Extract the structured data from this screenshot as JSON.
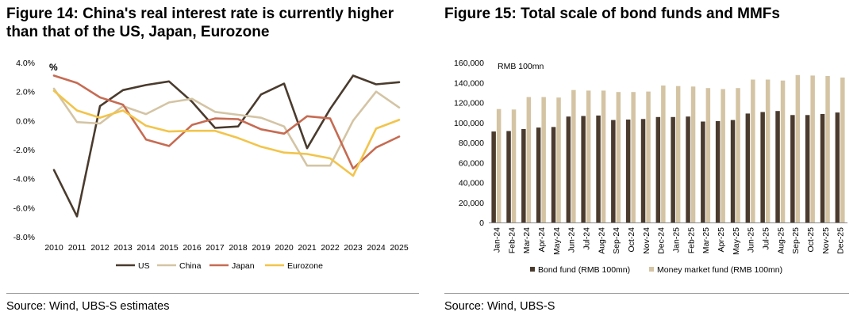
{
  "left": {
    "title": "Figure 14: China's real interest rate is currently higher than that of the US, Japan, Eurozone",
    "source": "Source: Wind, UBS-S estimates",
    "chart_data": {
      "type": "line",
      "unit_label": "%",
      "categories": [
        "2010",
        "2011",
        "2012",
        "2013",
        "2014",
        "2015",
        "2016",
        "2017",
        "2018",
        "2019",
        "2020",
        "2021",
        "2022",
        "2023",
        "2024",
        "2025"
      ],
      "ylim": [
        -8,
        4
      ],
      "yticks": [
        4,
        2,
        0,
        -2,
        -4,
        -6,
        -8
      ],
      "ytick_labels": [
        "4.0%",
        "2.0%",
        "0.0%",
        "-2.0%",
        "-4.0%",
        "-6.0%",
        "-8.0%"
      ],
      "grid": false,
      "legend_position": "bottom",
      "series": [
        {
          "name": "US",
          "color": "#4a3b2e",
          "values": [
            -3.4,
            -6.6,
            1.0,
            2.1,
            2.45,
            2.7,
            1.3,
            -0.5,
            -0.4,
            1.8,
            2.55,
            -1.9,
            0.8,
            3.1,
            2.5,
            2.65
          ]
        },
        {
          "name": "China",
          "color": "#d4c4a4",
          "values": [
            2.2,
            -0.1,
            -0.2,
            1.0,
            0.45,
            1.25,
            1.5,
            0.6,
            0.4,
            0.2,
            -0.4,
            -3.1,
            -3.1,
            0.0,
            2.0,
            0.9
          ]
        },
        {
          "name": "Japan",
          "color": "#c66b52",
          "values": [
            3.1,
            2.6,
            1.6,
            1.1,
            -1.3,
            -1.75,
            -0.3,
            0.15,
            0.1,
            -0.6,
            -0.9,
            0.3,
            0.15,
            -3.3,
            -1.85,
            -1.1
          ]
        },
        {
          "name": "Eurozone",
          "color": "#f2c44a",
          "values": [
            2.05,
            0.7,
            0.2,
            0.7,
            -0.35,
            -0.75,
            -0.7,
            -0.7,
            -1.2,
            -1.8,
            -2.2,
            -2.3,
            -2.6,
            -3.8,
            -0.55,
            0.05
          ]
        }
      ]
    }
  },
  "right": {
    "title": "Figure 15: Total scale of bond funds and MMFs",
    "source": "Source: Wind, UBS-S",
    "chart_data": {
      "type": "bar",
      "unit_label": "RMB 100mn",
      "categories": [
        "Jan-24",
        "Feb-24",
        "Mar-24",
        "Apr-24",
        "May-24",
        "Jun-24",
        "Jul-24",
        "Aug-24",
        "Sep-24",
        "Oct-24",
        "Nov-24",
        "Dec-24",
        "Jan-25",
        "Feb-25",
        "Mar-25",
        "Apr-25",
        "May-25",
        "Jun-25",
        "Jul-25",
        "Aug-25",
        "Sep-25",
        "Oct-25",
        "Nov-25",
        "Dec-25"
      ],
      "ylim": [
        0,
        160000
      ],
      "yticks": [
        0,
        20000,
        40000,
        60000,
        80000,
        100000,
        120000,
        140000,
        160000
      ],
      "ytick_labels": [
        "0",
        "20,000",
        "40,000",
        "60,000",
        "80,000",
        "100,000",
        "120,000",
        "140,000",
        "160,000"
      ],
      "grid": false,
      "legend_position": "bottom",
      "series": [
        {
          "name": "Bond fund (RMB 100mn)",
          "color": "#4a3b2e",
          "values": [
            91000,
            91500,
            93500,
            95000,
            95500,
            106000,
            106500,
            107000,
            102500,
            103000,
            103500,
            105500,
            105500,
            106000,
            101000,
            101500,
            102500,
            109000,
            110500,
            111500,
            107500,
            107500,
            108500,
            110000
          ]
        },
        {
          "name": "Money market fund (RMB 100mn)",
          "color": "#d4c4a4",
          "values": [
            113500,
            113000,
            125500,
            125500,
            125000,
            132500,
            132000,
            132000,
            130500,
            130500,
            131000,
            137000,
            136500,
            136000,
            134500,
            133500,
            134500,
            143000,
            143000,
            142000,
            147500,
            147000,
            146500,
            145000
          ]
        }
      ]
    }
  }
}
